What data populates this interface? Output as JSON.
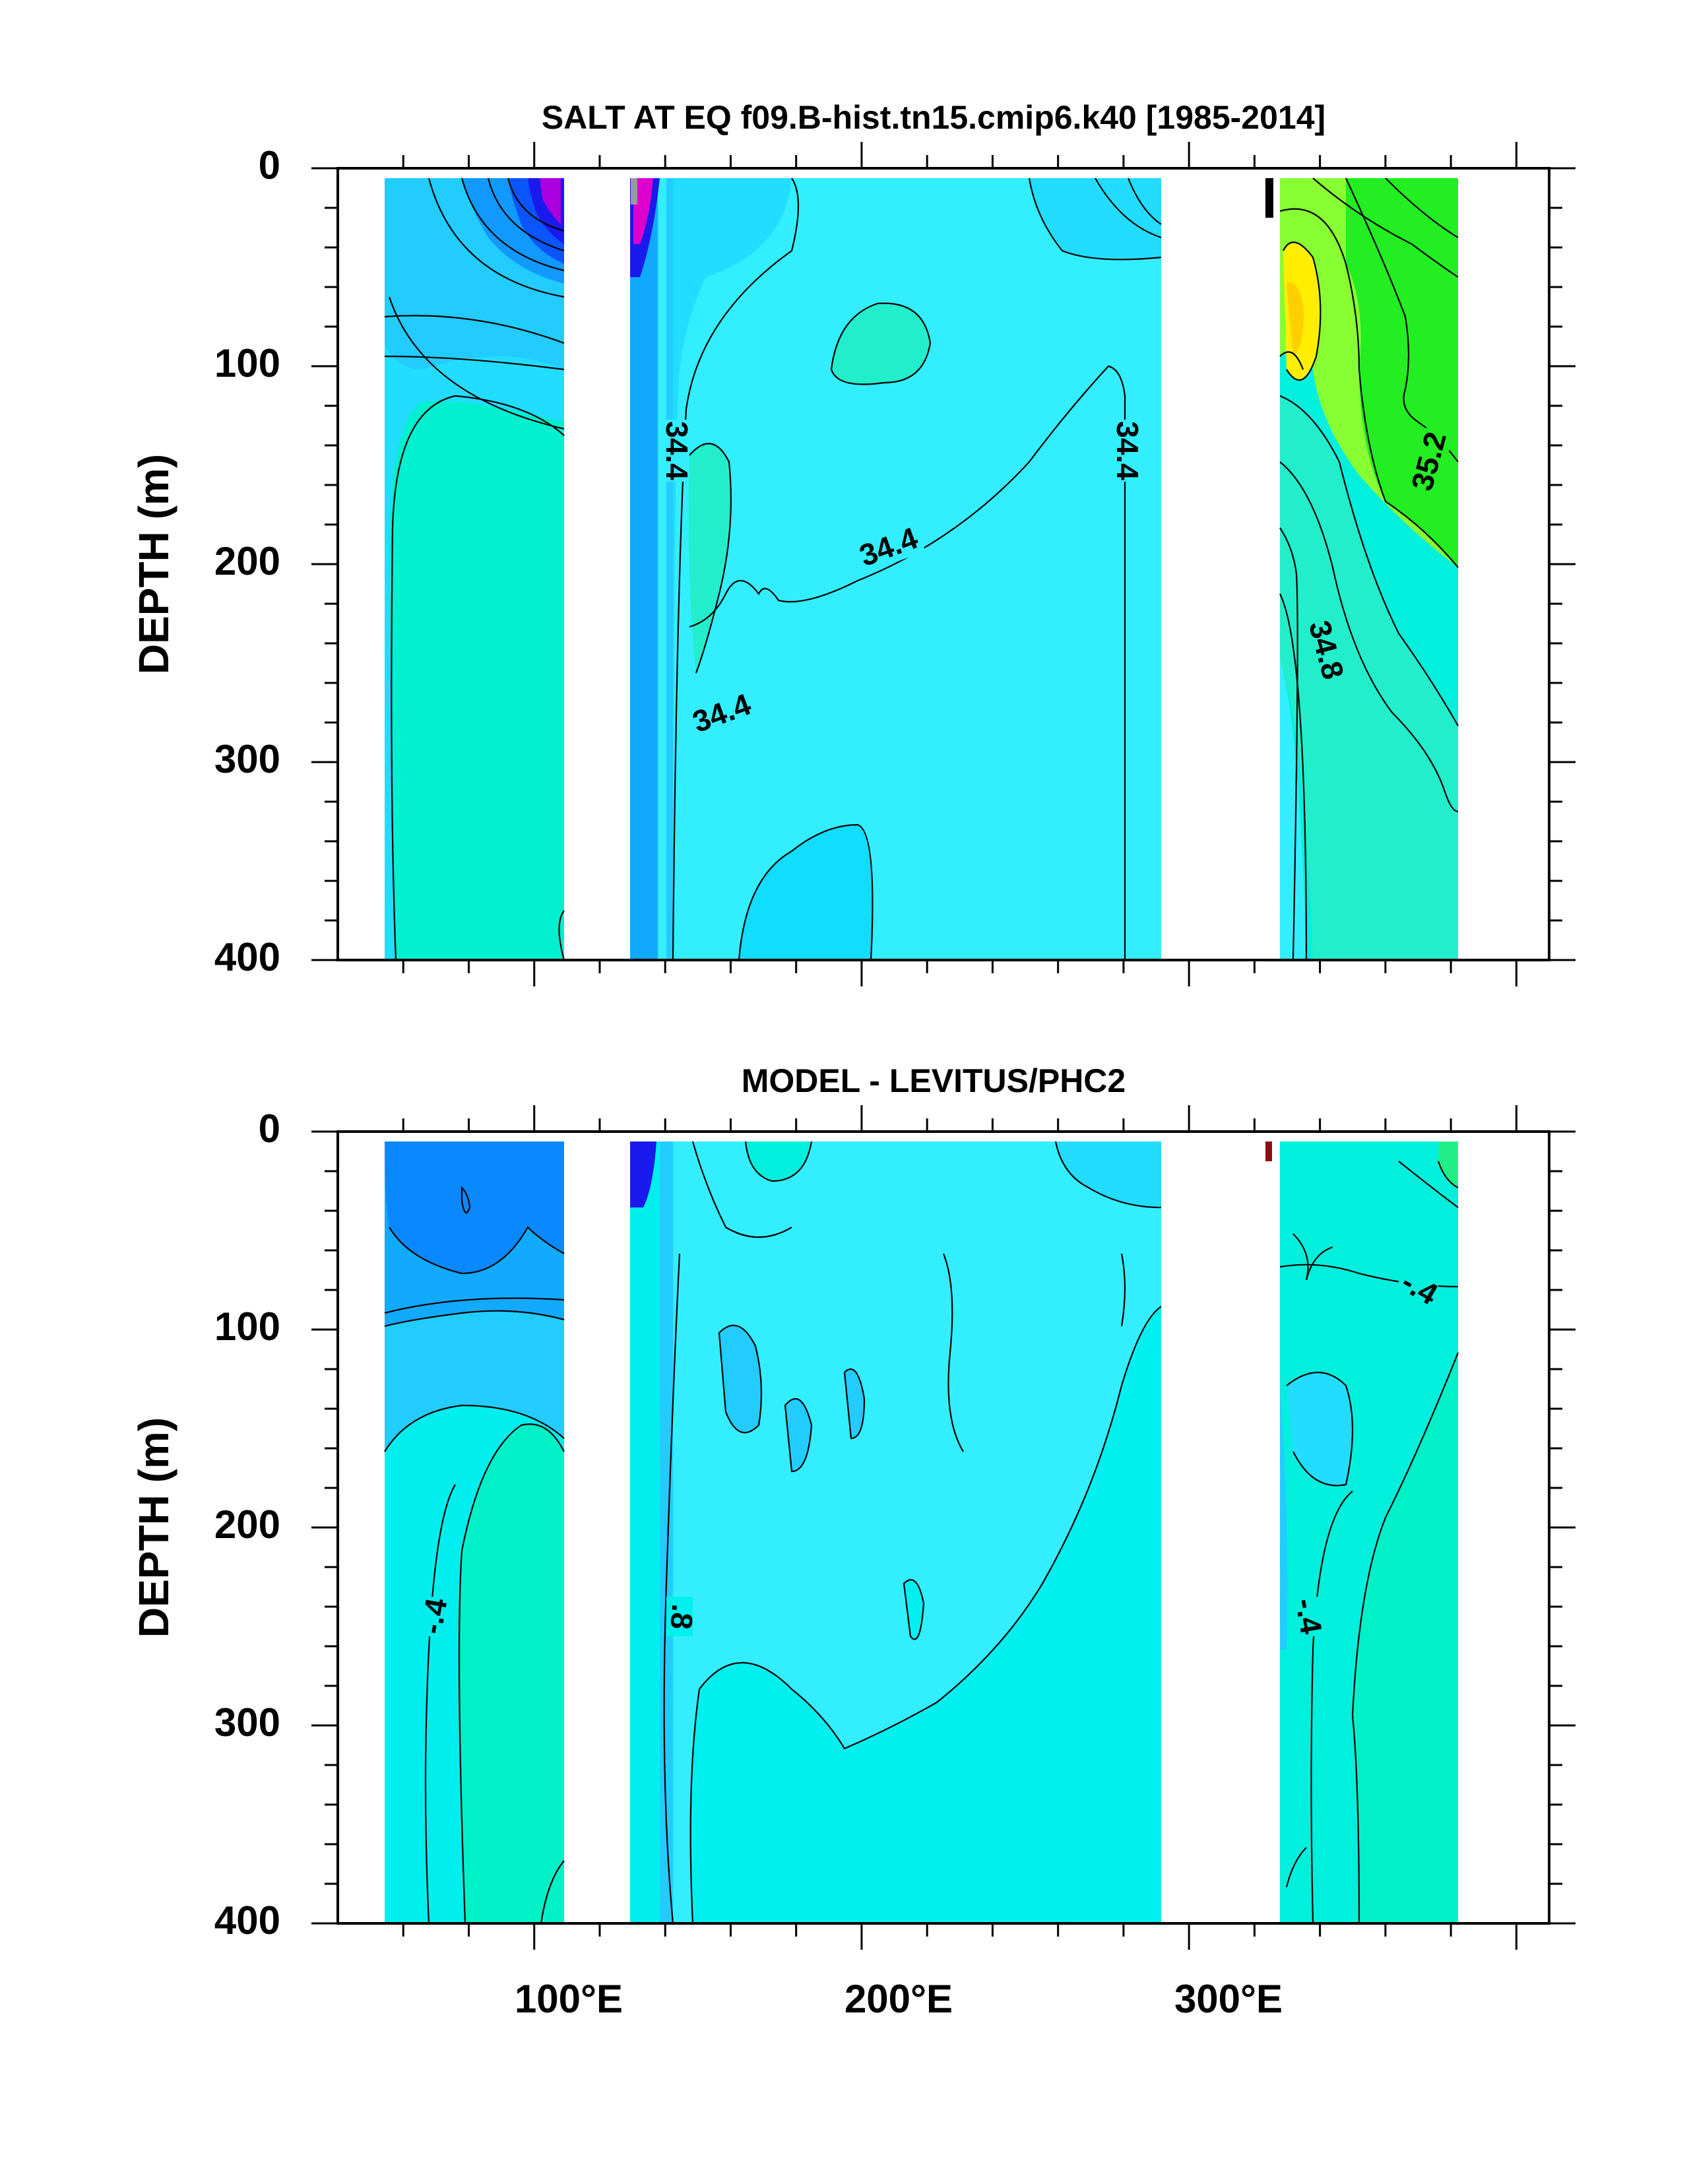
{
  "chart_data": [
    {
      "type": "contour",
      "title": "SALT AT EQ f09.B-hist.tn15.cmip6.k40 [1985-2014]",
      "ylabel": "DEPTH (m)",
      "ylim": [
        400,
        0
      ],
      "yticks": [
        "0",
        "100",
        "200",
        "300",
        "400"
      ],
      "xlim": [
        40,
        410
      ],
      "contour_labels": [
        "34.4",
        "34.4",
        "34.4",
        "34.4",
        "34.8",
        "35.2"
      ],
      "colors": {
        "low": "#0040ff",
        "mid": "#33eeff",
        "high_green": "#22ee22",
        "high_yellow": "#ffee00",
        "extreme": "#cc00cc"
      }
    },
    {
      "type": "contour",
      "title": "MODEL - LEVITUS/PHC2",
      "ylabel": "DEPTH (m)",
      "ylim": [
        400,
        0
      ],
      "yticks": [
        "0",
        "100",
        "200",
        "300",
        "400"
      ],
      "xticks": [
        "100°E",
        "200°E",
        "300°E"
      ],
      "xlim": [
        40,
        410
      ],
      "contour_labels": [
        "-.4",
        ".8",
        "-.4",
        "-.4"
      ],
      "colors": {
        "low": "#0a88ff",
        "mid": "#33eeff",
        "high": "#00f0d0"
      }
    }
  ]
}
